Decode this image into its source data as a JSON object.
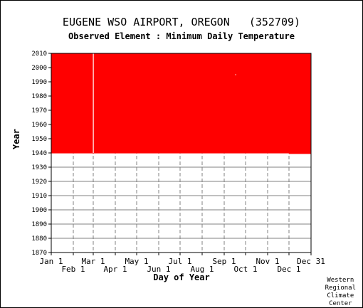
{
  "chart_data": {
    "type": "heatmap",
    "title": "EUGENE WSO AIRPORT, OREGON   (352709)",
    "subtitle": "Observed Element : Minimum Daily Temperature",
    "xlabel": "Day of Year",
    "ylabel": "Year",
    "ylim": [
      1870,
      2010
    ],
    "yticks": [
      1870,
      1880,
      1890,
      1900,
      1910,
      1920,
      1930,
      1940,
      1950,
      1960,
      1970,
      1980,
      1990,
      2000,
      2010
    ],
    "xlim": [
      1,
      366
    ],
    "xticks_upper": [
      {
        "label": "Jan 1",
        "day": 1
      },
      {
        "label": "Mar 1",
        "day": 60
      },
      {
        "label": "May 1",
        "day": 121
      },
      {
        "label": "Jul 1",
        "day": 182
      },
      {
        "label": "Sep 1",
        "day": 244
      },
      {
        "label": "Nov 1",
        "day": 305
      },
      {
        "label": "Dec 31",
        "day": 366
      }
    ],
    "xticks_lower": [
      {
        "label": "Feb 1",
        "day": 32
      },
      {
        "label": "Apr 1",
        "day": 91
      },
      {
        "label": "Jun 1",
        "day": 152
      },
      {
        "label": "Aug 1",
        "day": 213
      },
      {
        "label": "Oct 1",
        "day": 274
      },
      {
        "label": "Dec 1",
        "day": 335
      }
    ],
    "data_color": "#ff0000",
    "coverage": [
      {
        "start_day": 1,
        "end_day": 335,
        "start_year": 1939.7,
        "end_year": 2010
      },
      {
        "start_day": 335,
        "end_day": 366,
        "start_year": 1939.3,
        "end_year": 2010
      }
    ],
    "gaps": [
      {
        "day": 60,
        "start_year": 1940,
        "end_year": 2010
      },
      {
        "day": 260,
        "start_year": 1995,
        "end_year": 1995.3
      }
    ],
    "grid": true
  },
  "credit": [
    "Western",
    "Regional",
    "Climate",
    "Center"
  ]
}
